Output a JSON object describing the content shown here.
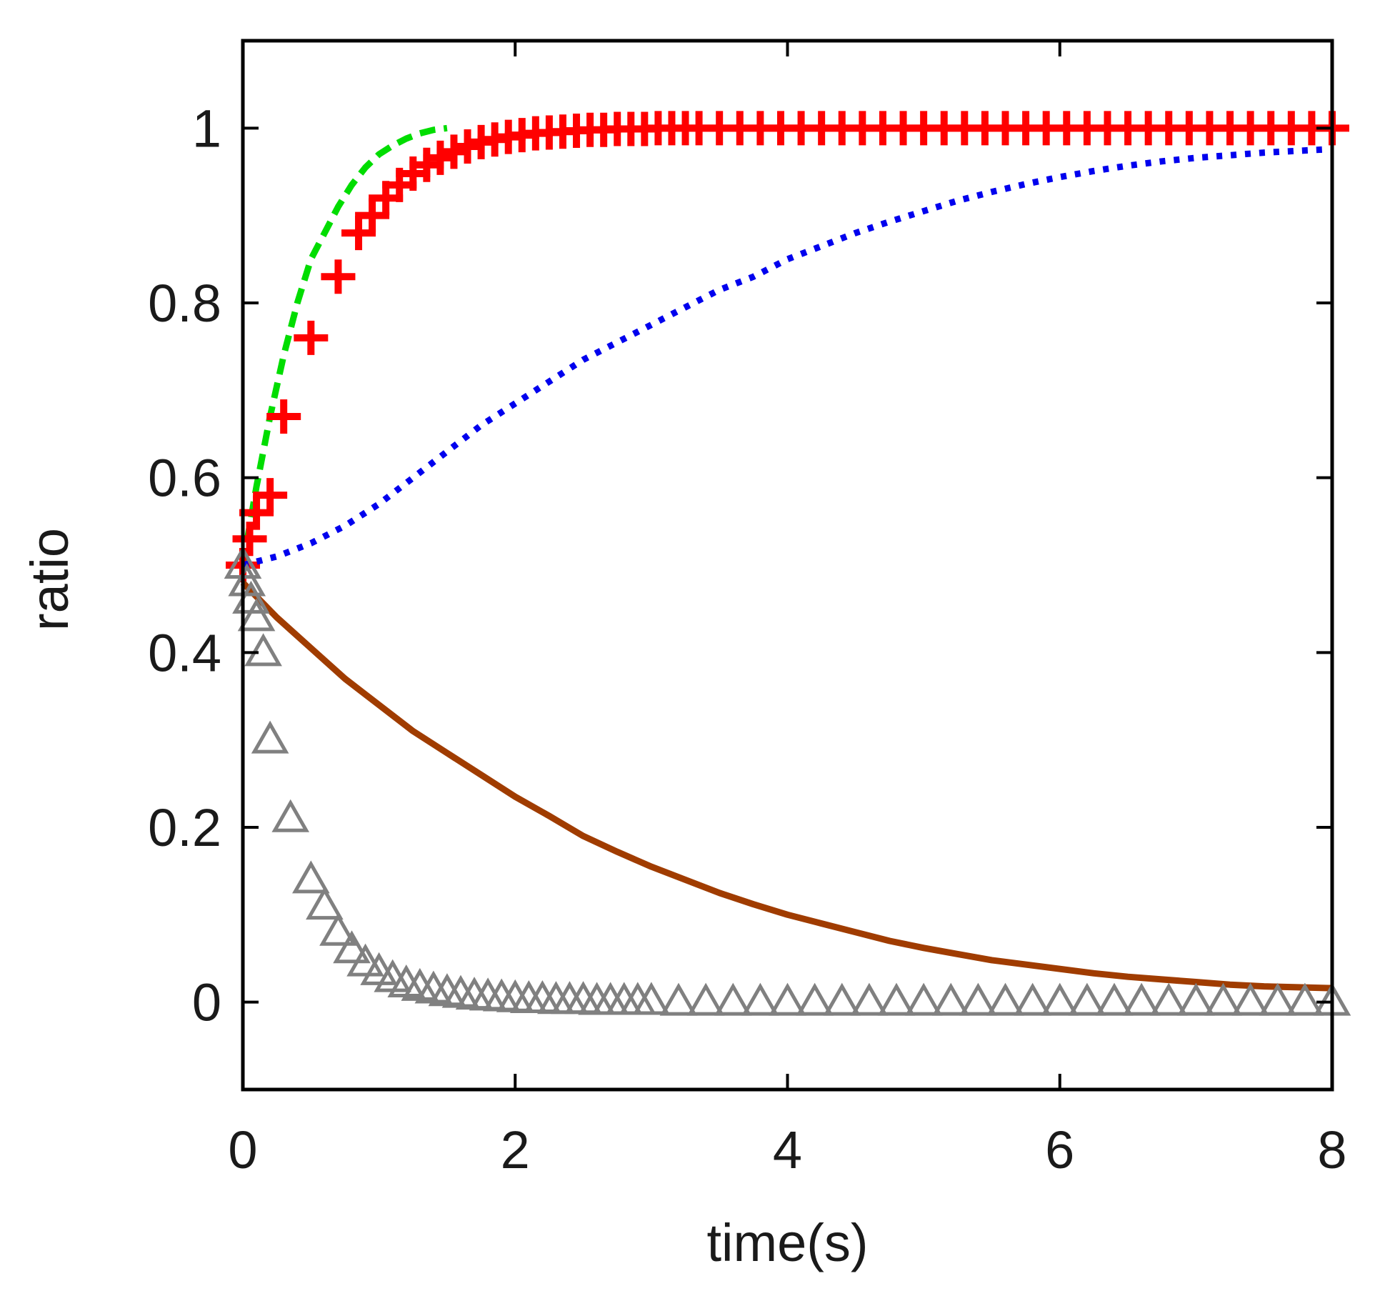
{
  "chart_data": {
    "type": "line",
    "title": "",
    "xlabel": "time(s)",
    "ylabel": "ratio",
    "xlim": [
      0,
      8
    ],
    "ylim": [
      -0.1,
      1.1
    ],
    "xticks": [
      0,
      2,
      4,
      6,
      8
    ],
    "xtick_labels": [
      "0",
      "2",
      "4",
      "6",
      "8"
    ],
    "yticks": [
      0,
      0.2,
      0.4,
      0.6,
      0.8,
      1
    ],
    "ytick_labels": [
      "0",
      "0.2",
      "0.4",
      "0.6",
      "0.8",
      "1"
    ],
    "grid": false,
    "legend": "none",
    "series": [
      {
        "name": "green dashed curve",
        "style": "dashed",
        "color": "#00dd00",
        "x": [
          0,
          0.1,
          0.2,
          0.3,
          0.4,
          0.5,
          0.6,
          0.7,
          0.8,
          0.9,
          1.0,
          1.1,
          1.2,
          1.3,
          1.4,
          1.5
        ],
        "y": [
          0.5,
          0.59,
          0.67,
          0.74,
          0.8,
          0.85,
          0.88,
          0.91,
          0.935,
          0.955,
          0.97,
          0.98,
          0.988,
          0.994,
          0.998,
          1.0
        ]
      },
      {
        "name": "red plus markers",
        "style": "markers",
        "marker": "plus",
        "color": "#ff0000",
        "x": [
          0,
          0.05,
          0.1,
          0.2,
          0.3,
          0.5,
          0.7,
          0.85,
          0.95,
          1.05,
          1.15,
          1.25,
          1.35,
          1.45,
          1.55,
          1.65,
          1.75,
          1.85,
          1.95,
          2.05,
          2.15,
          2.25,
          2.35,
          2.45,
          2.55,
          2.65,
          2.75,
          2.85,
          2.95,
          3.05,
          3.15,
          3.25,
          3.35,
          3.5,
          3.65,
          3.8,
          3.95,
          4.1,
          4.25,
          4.4,
          4.55,
          4.7,
          4.85,
          5.0,
          5.15,
          5.3,
          5.45,
          5.6,
          5.75,
          5.9,
          6.05,
          6.2,
          6.35,
          6.5,
          6.65,
          6.8,
          6.95,
          7.1,
          7.25,
          7.4,
          7.55,
          7.7,
          7.85,
          8.0
        ],
        "y": [
          0.5,
          0.53,
          0.56,
          0.58,
          0.67,
          0.76,
          0.83,
          0.88,
          0.9,
          0.92,
          0.935,
          0.948,
          0.958,
          0.966,
          0.973,
          0.979,
          0.984,
          0.987,
          0.99,
          0.992,
          0.994,
          0.995,
          0.996,
          0.997,
          0.998,
          0.998,
          0.999,
          0.999,
          0.999,
          1.0,
          1.0,
          1.0,
          1.0,
          1.0,
          1.0,
          1.0,
          1.0,
          1.0,
          1.0,
          1.0,
          1.0,
          1.0,
          1.0,
          1.0,
          1.0,
          1.0,
          1.0,
          1.0,
          1.0,
          1.0,
          1.0,
          1.0,
          1.0,
          1.0,
          1.0,
          1.0,
          1.0,
          1.0,
          1.0,
          1.0,
          1.0,
          1.0,
          1.0,
          1.0
        ]
      },
      {
        "name": "blue dotted curve",
        "style": "dotted",
        "color": "#0000ee",
        "x": [
          0,
          0.25,
          0.5,
          0.75,
          1.0,
          1.25,
          1.5,
          1.75,
          2.0,
          2.25,
          2.5,
          2.75,
          3.0,
          3.25,
          3.5,
          3.75,
          4.0,
          4.25,
          4.5,
          4.75,
          5.0,
          5.25,
          5.5,
          5.75,
          6.0,
          6.25,
          6.5,
          6.75,
          7.0,
          7.25,
          7.5,
          7.75,
          8.0
        ],
        "y": [
          0.5,
          0.51,
          0.525,
          0.545,
          0.57,
          0.6,
          0.63,
          0.66,
          0.685,
          0.71,
          0.735,
          0.755,
          0.775,
          0.795,
          0.815,
          0.83,
          0.85,
          0.865,
          0.88,
          0.893,
          0.905,
          0.917,
          0.927,
          0.936,
          0.944,
          0.951,
          0.957,
          0.962,
          0.966,
          0.969,
          0.972,
          0.974,
          0.976
        ]
      },
      {
        "name": "brown solid curve",
        "style": "solid",
        "color": "#a03c00",
        "x": [
          0,
          0.25,
          0.5,
          0.75,
          1.0,
          1.25,
          1.5,
          1.75,
          2.0,
          2.25,
          2.5,
          2.75,
          3.0,
          3.25,
          3.5,
          3.75,
          4.0,
          4.25,
          4.5,
          4.75,
          5.0,
          5.25,
          5.5,
          5.75,
          6.0,
          6.25,
          6.5,
          6.75,
          7.0,
          7.25,
          7.5,
          7.75,
          8.0
        ],
        "y": [
          0.48,
          0.44,
          0.405,
          0.37,
          0.34,
          0.31,
          0.285,
          0.26,
          0.235,
          0.213,
          0.19,
          0.172,
          0.155,
          0.14,
          0.125,
          0.112,
          0.1,
          0.09,
          0.08,
          0.07,
          0.062,
          0.055,
          0.048,
          0.043,
          0.038,
          0.033,
          0.029,
          0.026,
          0.023,
          0.02,
          0.018,
          0.017,
          0.016
        ]
      },
      {
        "name": "gray triangle markers",
        "style": "markers",
        "marker": "triangle",
        "color": "#808080",
        "x": [
          0,
          0.03,
          0.06,
          0.1,
          0.15,
          0.2,
          0.35,
          0.5,
          0.6,
          0.7,
          0.8,
          0.9,
          1.0,
          1.1,
          1.2,
          1.3,
          1.4,
          1.5,
          1.6,
          1.7,
          1.8,
          1.9,
          2.0,
          2.1,
          2.2,
          2.3,
          2.4,
          2.5,
          2.6,
          2.7,
          2.8,
          2.9,
          3.0,
          3.2,
          3.4,
          3.6,
          3.8,
          4.0,
          4.2,
          4.4,
          4.6,
          4.8,
          5.0,
          5.2,
          5.4,
          5.6,
          5.8,
          6.0,
          6.2,
          6.4,
          6.6,
          6.8,
          7.0,
          7.2,
          7.4,
          7.6,
          7.8,
          8.0
        ],
        "y": [
          0.5,
          0.48,
          0.46,
          0.44,
          0.4,
          0.3,
          0.21,
          0.14,
          0.11,
          0.08,
          0.06,
          0.045,
          0.035,
          0.027,
          0.021,
          0.017,
          0.014,
          0.011,
          0.009,
          0.007,
          0.006,
          0.005,
          0.004,
          0.003,
          0.003,
          0.002,
          0.002,
          0.002,
          0.001,
          0.001,
          0.001,
          0.001,
          0.001,
          0.0,
          0.0,
          0.0,
          0.0,
          0.0,
          0.0,
          0.0,
          0.0,
          0.0,
          0.0,
          0.0,
          0.0,
          0.0,
          0.0,
          0.0,
          0.0,
          0.0,
          0.0,
          0.0,
          0.0,
          0.0,
          0.0,
          0.0,
          0.0,
          0.0
        ]
      }
    ]
  }
}
